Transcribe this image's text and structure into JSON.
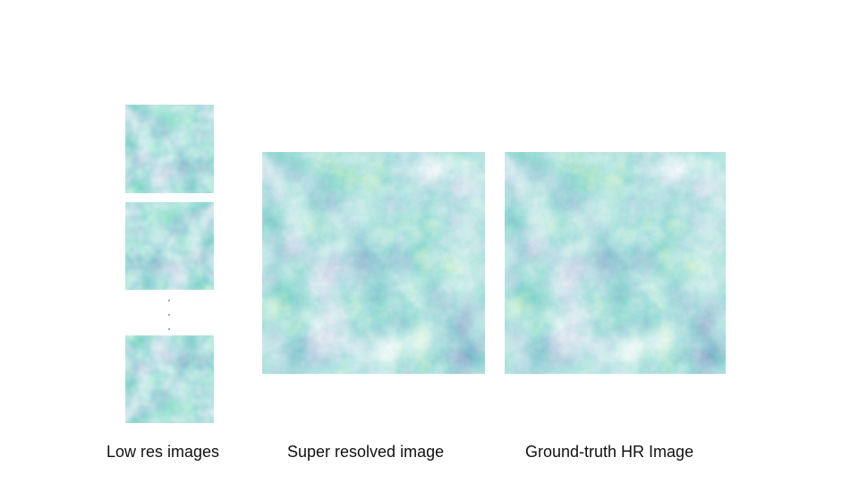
{
  "captions": {
    "low_res": "Low res images",
    "super_resolved": "Super resolved image",
    "ground_truth": "Ground-truth HR Image"
  },
  "colors": {
    "background": "#ffffff",
    "viridis_dark": "#3b4f8a",
    "viridis_mid": "#2f8f8d",
    "viridis_light": "#a7d84c"
  }
}
